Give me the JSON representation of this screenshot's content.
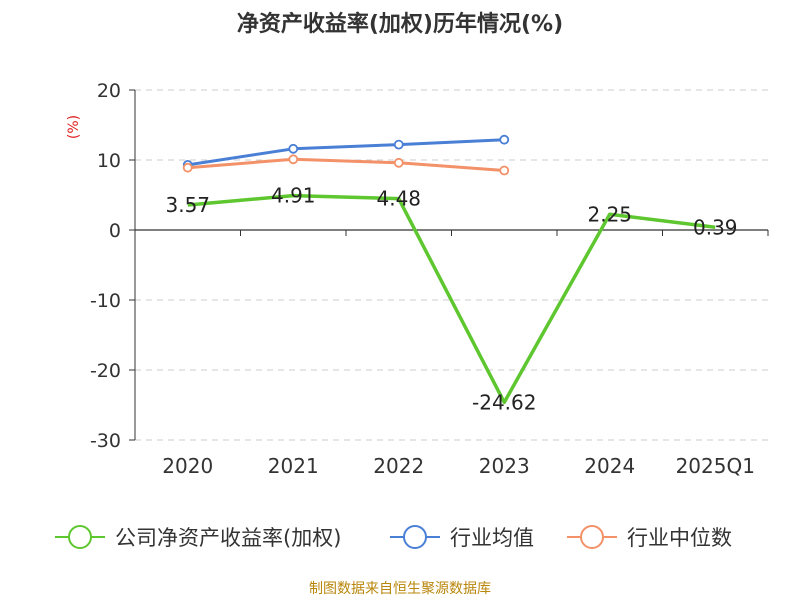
{
  "chart_data": {
    "type": "line",
    "title": "净资产收益率(加权)历年情况(%)",
    "ylabel": "(%)",
    "categories": [
      "2020",
      "2021",
      "2022",
      "2023",
      "2024",
      "2025Q1"
    ],
    "ylim": [
      -30,
      20
    ],
    "yticks": [
      "20",
      "10",
      "0",
      "-10",
      "-20",
      "-30"
    ],
    "grid": true,
    "legend_position": "bottom",
    "series": [
      {
        "name": "公司净资产收益率(加权)",
        "color": "#5ec72f",
        "values": [
          3.57,
          4.91,
          4.48,
          -24.62,
          2.25,
          0.39
        ],
        "labels": [
          "3.57",
          "4.91",
          "4.48",
          "-24.62",
          "2.25",
          "0.39"
        ],
        "markers": false
      },
      {
        "name": "行业均值",
        "color": "#4a7fd6",
        "values": [
          9.3,
          11.6,
          12.2,
          12.9,
          null,
          null
        ],
        "markers": true
      },
      {
        "name": "行业中位数",
        "color": "#f39168",
        "values": [
          8.9,
          10.1,
          9.6,
          8.5,
          null,
          null
        ],
        "markers": true
      }
    ]
  },
  "source_note": "制图数据来自恒生聚源数据库"
}
